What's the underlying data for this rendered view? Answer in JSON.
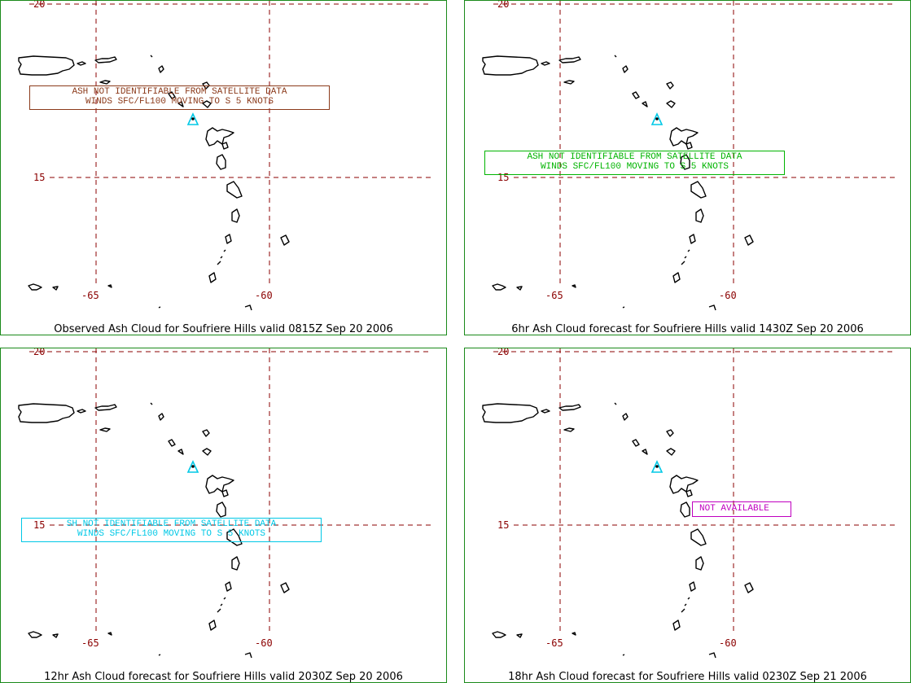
{
  "colors": {
    "frame": "#1a8a1a",
    "grid": "#8b0000",
    "coast": "#000000",
    "volcano": "#00c8e6",
    "msg_brown": "#8b3a1a",
    "msg_green": "#00b400",
    "msg_cyan": "#00c8e6",
    "msg_magenta": "#c000c0"
  },
  "grid_labels": {
    "lat_20": "20",
    "lat_15": "15",
    "lon_65": "-65",
    "lon_60": "-60"
  },
  "panels": [
    {
      "caption": "Observed Ash Cloud for Soufriere  Hills valid 0815Z Sep 20 2006",
      "message_line1": "ASH NOT IDENTIFIABLE FROM SATELLITE DATA",
      "message_line2": "WINDS SFC/FL100 MOVING TO S 5 KNOTS",
      "message_color": "#8b3a1a"
    },
    {
      "caption": "6hr Ash Cloud forecast for Soufriere  Hills valid 1430Z Sep 20 2006",
      "message_line1": "ASH NOT IDENTIFIABLE FROM SATELLITE DATA",
      "message_line2": "WINDS SFC/FL100 MOVING TO S 5 KNOTS",
      "message_color": "#00b400"
    },
    {
      "caption": "12hr Ash Cloud forecast for Soufriere  Hills valid 2030Z Sep 20 2006",
      "message_line1": "SH NOT IDENTIFIABLE FROM SATELLITE DATA",
      "message_line2": "WINDS SFC/FL100 MOVING TO S 5 KNOTS",
      "message_color": "#00c8e6"
    },
    {
      "caption": "18hr Ash Cloud forecast for Soufriere  Hills valid 0230Z Sep 21 2006",
      "message_line1": "NOT AVAILABLE",
      "message_line2": "",
      "message_color": "#c000c0"
    }
  ]
}
